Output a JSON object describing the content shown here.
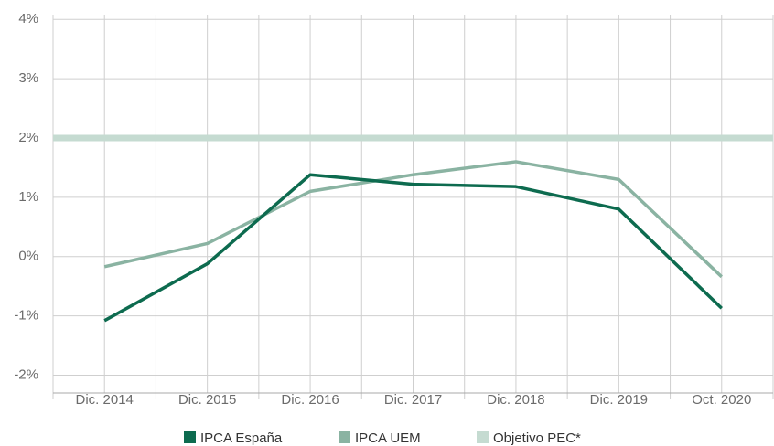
{
  "chart_data": {
    "type": "line",
    "categories": [
      "Dic. 2014",
      "Dic. 2015",
      "Dic. 2016",
      "Dic. 2017",
      "Dic. 2018",
      "Dic. 2019",
      "Oct. 2020"
    ],
    "series": [
      {
        "name": "IPCA España",
        "color": "#0d6b4f",
        "values": [
          -1.08,
          -0.12,
          1.38,
          1.22,
          1.18,
          0.8,
          -0.87
        ]
      },
      {
        "name": "IPCA UEM",
        "color": "#8ab3a2",
        "values": [
          -0.17,
          0.22,
          1.1,
          1.38,
          1.6,
          1.3,
          -0.34
        ]
      },
      {
        "name": "Objetivo PEC*",
        "color": "#c5dbd1",
        "values": [
          2,
          2,
          2,
          2,
          2,
          2,
          2
        ]
      }
    ],
    "ylim": [
      -2.3,
      4.08
    ],
    "yticks": [
      {
        "value": -2,
        "label": "-2%"
      },
      {
        "value": -1,
        "label": "-1%"
      },
      {
        "value": 0,
        "label": "0%"
      },
      {
        "value": 1,
        "label": "1%"
      },
      {
        "value": 2,
        "label": "2%"
      },
      {
        "value": 3,
        "label": "3%"
      },
      {
        "value": 4,
        "label": "4%"
      }
    ],
    "grid": true,
    "legend": "bottom"
  }
}
